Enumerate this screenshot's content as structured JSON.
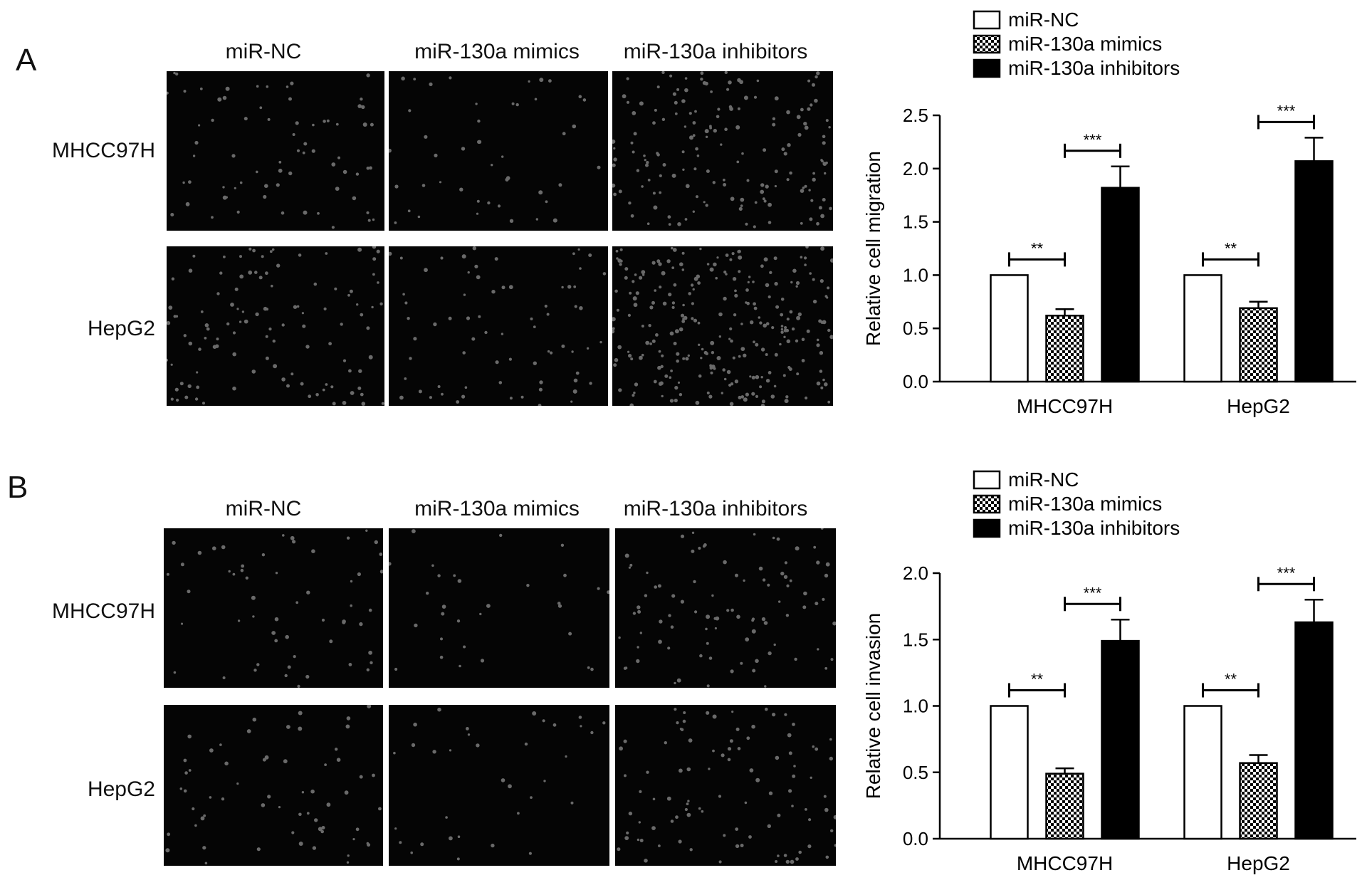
{
  "panels": [
    {
      "letter": "A",
      "columns": [
        "miR-NC",
        "miR-130a mimics",
        "miR-130a inhibitors"
      ],
      "rows": [
        "MHCC97H",
        "HepG2"
      ],
      "cell_density": [
        [
          70,
          45,
          160
        ],
        [
          110,
          70,
          260
        ]
      ]
    },
    {
      "letter": "B",
      "columns": [
        "miR-NC",
        "miR-130a mimics",
        "miR-130a inhibitors"
      ],
      "rows": [
        "MHCC97H",
        "HepG2"
      ],
      "cell_density": [
        [
          55,
          30,
          90
        ],
        [
          60,
          35,
          95
        ]
      ]
    }
  ],
  "colors": {
    "miR-NC": "#ffffff",
    "miR-130a inhibitors": "#000000",
    "micrograph_bg": "#050505",
    "cell": "#6a6a6a"
  },
  "chart_data": [
    {
      "type": "bar",
      "categories": [
        "MHCC97H",
        "HepG2"
      ],
      "series": [
        {
          "name": "miR-NC",
          "values": [
            1.0,
            1.0
          ],
          "errors": [
            0,
            0
          ],
          "fill": "white"
        },
        {
          "name": "miR-130a mimics",
          "values": [
            0.62,
            0.69
          ],
          "errors": [
            0.06,
            0.06
          ],
          "fill": "checker"
        },
        {
          "name": "miR-130a inhibitors",
          "values": [
            1.82,
            2.07
          ],
          "errors": [
            0.2,
            0.22
          ],
          "fill": "black"
        }
      ],
      "ylabel": "Relative cell migration",
      "xlabel": "",
      "ylim": [
        0,
        2.5
      ],
      "yticks": [
        "0.0",
        "0.5",
        "1.0",
        "1.5",
        "2.0",
        "2.5"
      ],
      "significance": [
        {
          "category": 0,
          "from": 0,
          "to": 1,
          "label": "**"
        },
        {
          "category": 0,
          "from": 1,
          "to": 2,
          "label": "***"
        },
        {
          "category": 1,
          "from": 0,
          "to": 1,
          "label": "**"
        },
        {
          "category": 1,
          "from": 1,
          "to": 2,
          "label": "***"
        }
      ],
      "legend": "top"
    },
    {
      "type": "bar",
      "categories": [
        "MHCC97H",
        "HepG2"
      ],
      "series": [
        {
          "name": "miR-NC",
          "values": [
            1.0,
            1.0
          ],
          "errors": [
            0,
            0
          ],
          "fill": "white"
        },
        {
          "name": "miR-130a mimics",
          "values": [
            0.49,
            0.57
          ],
          "errors": [
            0.04,
            0.06
          ],
          "fill": "checker"
        },
        {
          "name": "miR-130a inhibitors",
          "values": [
            1.49,
            1.63
          ],
          "errors": [
            0.16,
            0.17
          ],
          "fill": "black"
        }
      ],
      "ylabel": "Relative cell invasion",
      "xlabel": "",
      "ylim": [
        0,
        2.0
      ],
      "yticks": [
        "0.0",
        "0.5",
        "1.0",
        "1.5",
        "2.0"
      ],
      "significance": [
        {
          "category": 0,
          "from": 0,
          "to": 1,
          "label": "**"
        },
        {
          "category": 0,
          "from": 1,
          "to": 2,
          "label": "***"
        },
        {
          "category": 1,
          "from": 0,
          "to": 1,
          "label": "**"
        },
        {
          "category": 1,
          "from": 1,
          "to": 2,
          "label": "***"
        }
      ],
      "legend": "top"
    }
  ]
}
